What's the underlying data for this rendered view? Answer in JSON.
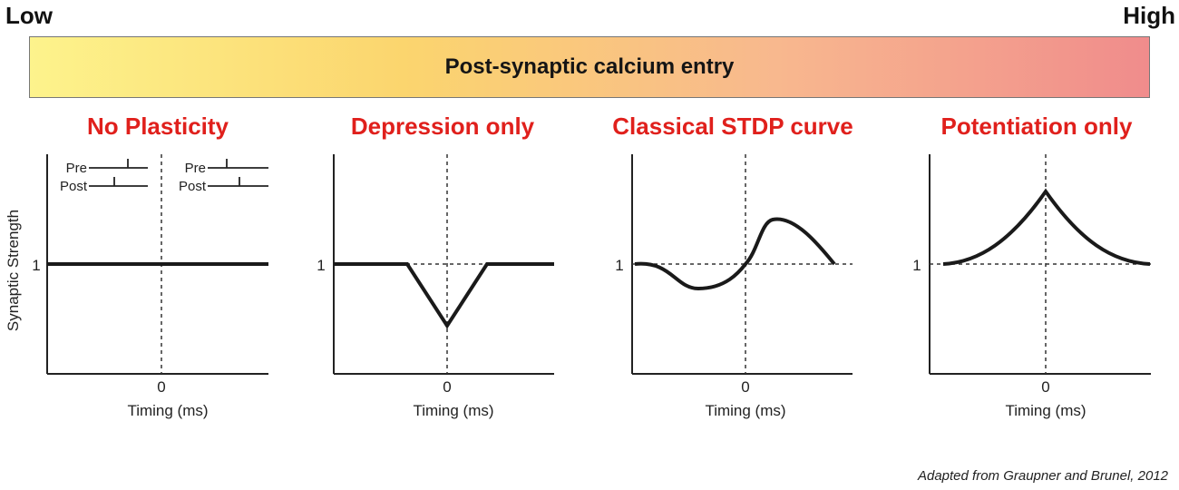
{
  "scale": {
    "low_label": "Low",
    "high_label": "High",
    "bar_label": "Post-synaptic calcium entry",
    "gradient_colors": [
      "#fdf38c",
      "#fbd56e",
      "#f8b88e",
      "#f08c8c"
    ]
  },
  "title_color": "#e0201c",
  "y_axis_label": "Synaptic Strength",
  "x_axis_label": "Timing (ms)",
  "x_zero_label": "0",
  "baseline_label": "1",
  "legend": {
    "pre_label": "Pre",
    "post_label": "Post"
  },
  "panels": [
    {
      "title": "No Plasticity"
    },
    {
      "title": "Depression only"
    },
    {
      "title": "Classical STDP curve"
    },
    {
      "title": "Potentiation only"
    }
  ],
  "citation": "Adapted from Graupner and Brunel, 2012"
}
